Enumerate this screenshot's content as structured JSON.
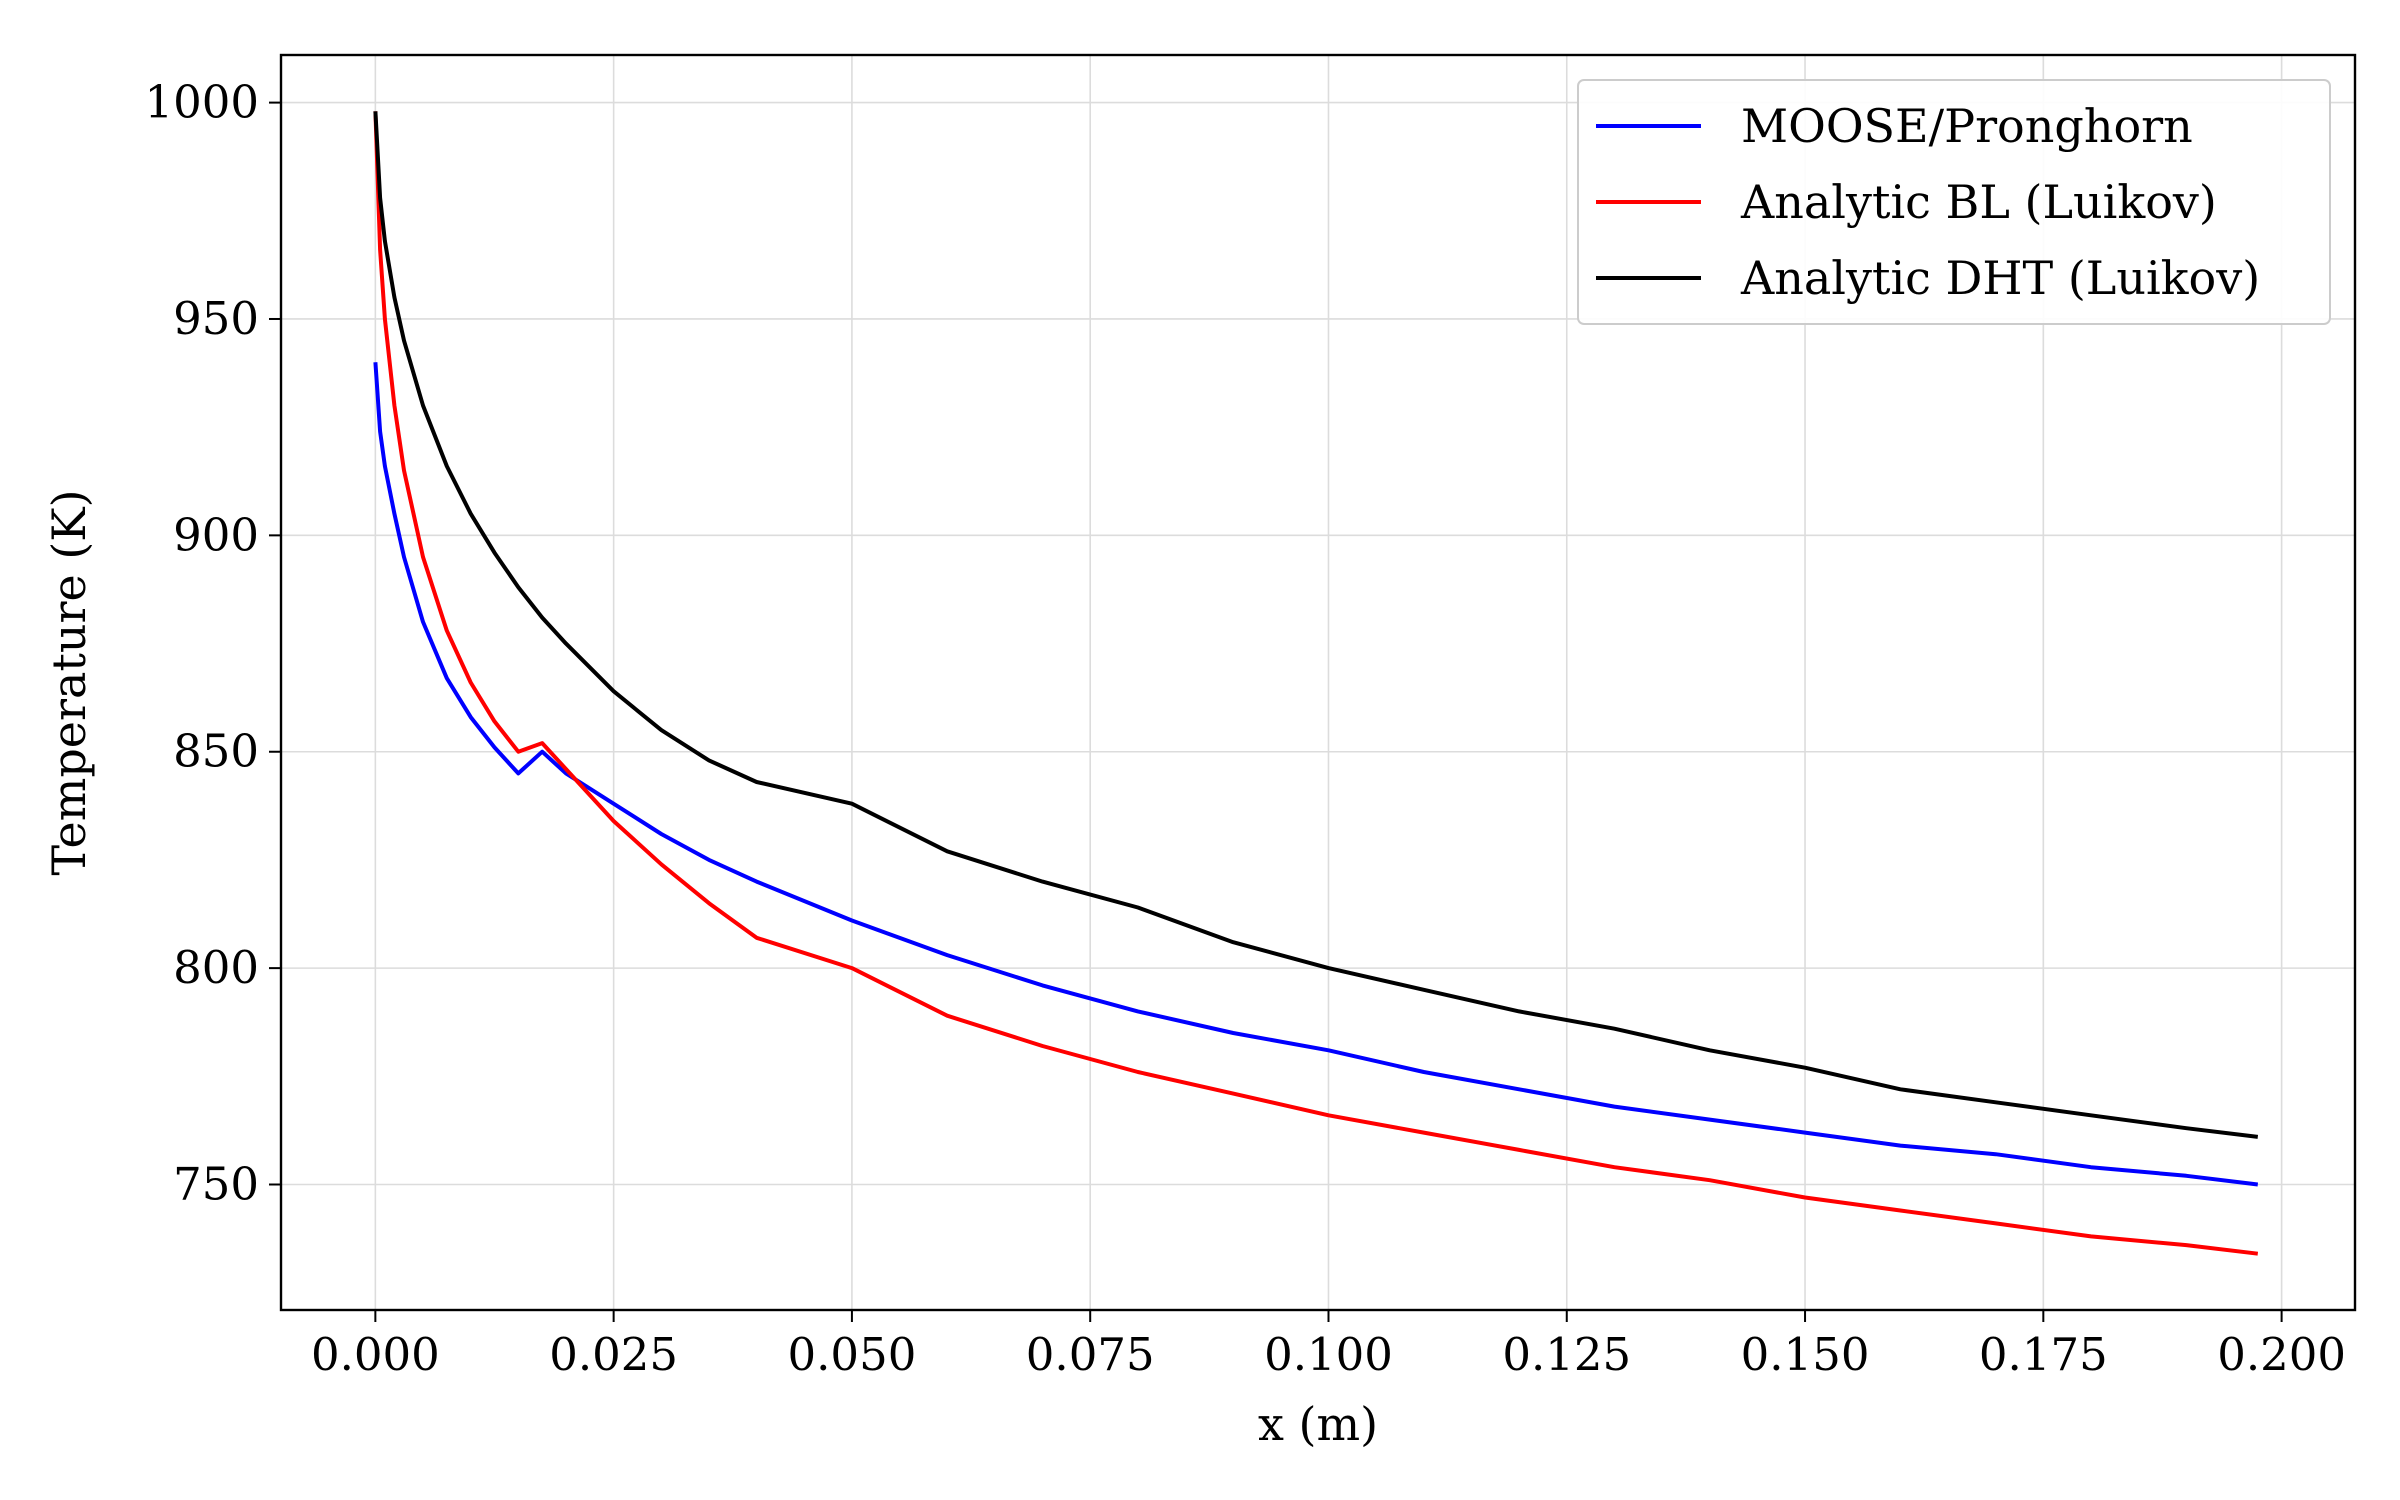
{
  "chart_data": {
    "type": "line",
    "title": "",
    "xlabel": "x (m)",
    "ylabel": "Temperature (K)",
    "xlim": [
      -0.0099,
      0.2077
    ],
    "ylim": [
      721,
      1011
    ],
    "xticks": [
      0.0,
      0.025,
      0.05,
      0.075,
      0.1,
      0.125,
      0.15,
      0.175,
      0.2
    ],
    "xtick_labels": [
      "0.000",
      "0.025",
      "0.050",
      "0.075",
      "0.100",
      "0.125",
      "0.150",
      "0.175",
      "0.200"
    ],
    "yticks": [
      750,
      800,
      850,
      900,
      950,
      1000
    ],
    "ytick_labels": [
      "750",
      "800",
      "850",
      "900",
      "950",
      "1000"
    ],
    "grid": true,
    "legend_position": "top-right",
    "series": [
      {
        "name": "MOOSE/Pronghorn",
        "color": "#0000ff",
        "x": [
          0.0,
          0.0005,
          0.001,
          0.002,
          0.003,
          0.005,
          0.0075,
          0.01,
          0.0125,
          0.015,
          0.0175,
          0.02,
          0.025,
          0.03,
          0.035,
          0.04,
          0.05,
          0.06,
          0.07,
          0.08,
          0.09,
          0.1,
          0.11,
          0.12,
          0.13,
          0.14,
          0.15,
          0.16,
          0.17,
          0.18,
          0.19,
          0.1975
        ],
        "y": [
          940,
          924,
          916,
          905,
          895,
          880,
          867,
          858,
          851,
          845,
          850,
          845,
          838,
          831,
          825,
          820,
          811,
          803,
          796,
          790,
          785,
          781,
          776,
          772,
          768,
          765,
          762,
          759,
          757,
          754,
          752,
          750
        ]
      },
      {
        "name": "Analytic BL (Luikov)",
        "color": "#ff0000",
        "x": [
          0.0,
          0.0005,
          0.001,
          0.002,
          0.003,
          0.005,
          0.0075,
          0.01,
          0.0125,
          0.015,
          0.0175,
          0.02,
          0.025,
          0.03,
          0.035,
          0.04,
          0.05,
          0.06,
          0.07,
          0.08,
          0.09,
          0.1,
          0.11,
          0.12,
          0.13,
          0.14,
          0.15,
          0.16,
          0.17,
          0.18,
          0.19,
          0.1975
        ],
        "y": [
          998,
          966,
          950,
          930,
          915,
          895,
          878,
          866,
          857,
          850,
          852,
          846,
          834,
          824,
          815,
          807,
          800,
          789,
          782,
          776,
          771,
          766,
          762,
          758,
          754,
          751,
          747,
          744,
          741,
          738,
          736,
          734
        ]
      },
      {
        "name": "Analytic DHT (Luikov)",
        "color": "#000000",
        "x": [
          0.0,
          0.0005,
          0.001,
          0.002,
          0.003,
          0.005,
          0.0075,
          0.01,
          0.0125,
          0.015,
          0.0175,
          0.02,
          0.025,
          0.03,
          0.035,
          0.04,
          0.05,
          0.06,
          0.07,
          0.08,
          0.09,
          0.1,
          0.11,
          0.12,
          0.13,
          0.14,
          0.15,
          0.16,
          0.17,
          0.18,
          0.19,
          0.1975
        ],
        "y": [
          998,
          978,
          968,
          955,
          945,
          930,
          916,
          905,
          896,
          888,
          881,
          875,
          864,
          855,
          848,
          843,
          838,
          827,
          820,
          814,
          806,
          800,
          795,
          790,
          786,
          781,
          777,
          772,
          769,
          766,
          763,
          761
        ]
      }
    ]
  }
}
